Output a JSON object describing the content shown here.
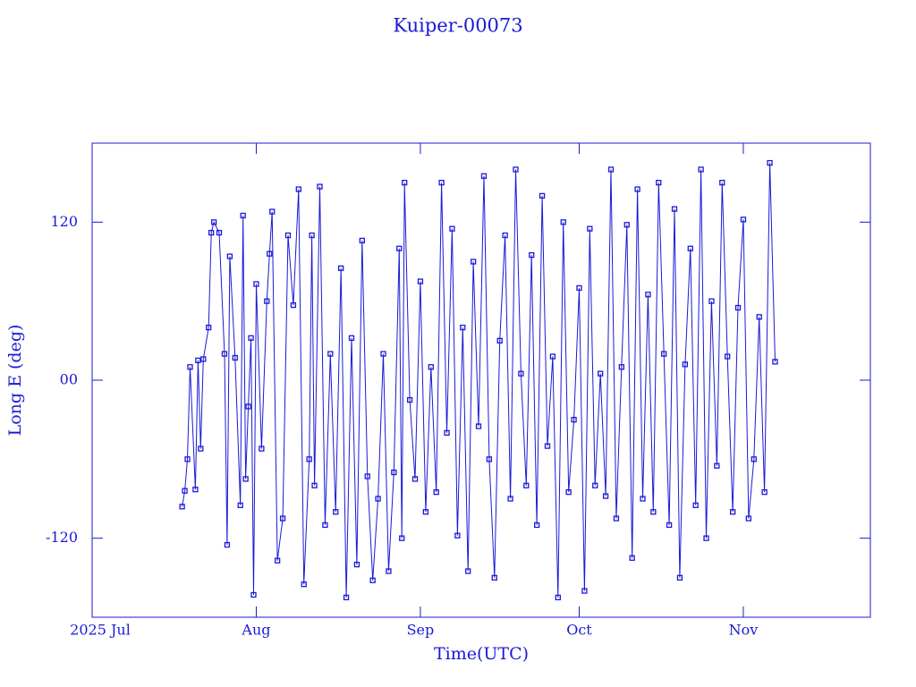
{
  "chart_data": {
    "type": "line",
    "title": "Kuiper-00073",
    "xlabel": "Time(UTC)",
    "ylabel": "Long E (deg)",
    "color": "#1a1ad6",
    "x": [
      17,
      17.5,
      18,
      18.5,
      19.5,
      20,
      20.5,
      21,
      22,
      22.5,
      23,
      24,
      25,
      25.5,
      26,
      27,
      28,
      28.5,
      29,
      29.5,
      30,
      30.5,
      31,
      32,
      33,
      33.5,
      34,
      35,
      36,
      37,
      38,
      39,
      40,
      41,
      41.5,
      42,
      43,
      44,
      45,
      46,
      47,
      48,
      49,
      50,
      51,
      52,
      53,
      54,
      55,
      56,
      57,
      58,
      58.5,
      59,
      60,
      61,
      62,
      63,
      64,
      65,
      66,
      67,
      68,
      69,
      70,
      71,
      72,
      73,
      74,
      75,
      76,
      77,
      78,
      79,
      80,
      81,
      82,
      83,
      84,
      85,
      86,
      87,
      88,
      89,
      90,
      91,
      92,
      93,
      94,
      95,
      96,
      97,
      98,
      99,
      100,
      101,
      102,
      103,
      104,
      105,
      106,
      107,
      108,
      109,
      110,
      111,
      112,
      113,
      114,
      115,
      116,
      117,
      118,
      119,
      120,
      121,
      122,
      123,
      124,
      125,
      126,
      127,
      128,
      129
    ],
    "values": [
      -96,
      -84,
      -60,
      10,
      -83,
      15,
      -52,
      16,
      40,
      112,
      120,
      112,
      20,
      -125,
      94,
      17,
      -95,
      125,
      -75,
      -20,
      32,
      -163,
      73,
      -52,
      60,
      96,
      128,
      -137,
      -105,
      110,
      57,
      145,
      -155,
      -60,
      110,
      -80,
      147,
      -110,
      20,
      -100,
      85,
      -165,
      32,
      -140,
      106,
      -73,
      -152,
      -90,
      20,
      -145,
      -70,
      100,
      -120,
      150,
      -15,
      -75,
      75,
      -100,
      10,
      -85,
      150,
      -40,
      115,
      -118,
      40,
      -145,
      90,
      -35,
      155,
      -60,
      -150,
      30,
      110,
      -90,
      160,
      5,
      -80,
      95,
      -110,
      140,
      -50,
      18,
      -165,
      120,
      -85,
      -30,
      70,
      -160,
      115,
      -80,
      5,
      -88,
      160,
      -105,
      10,
      118,
      -135,
      145,
      -90,
      65,
      -100,
      150,
      20,
      -110,
      130,
      -150,
      12,
      100,
      -95,
      160,
      -120,
      60,
      -65,
      150,
      18,
      -100,
      55,
      122,
      -105,
      -60,
      48,
      -85,
      165,
      14
    ],
    "xlim": [
      0,
      147
    ],
    "xticks": [
      {
        "value": 0,
        "label": "2025 Jul"
      },
      {
        "value": 31,
        "label": "Aug"
      },
      {
        "value": 62,
        "label": "Sep"
      },
      {
        "value": 92,
        "label": "Oct"
      },
      {
        "value": 123,
        "label": "Nov"
      }
    ],
    "ylim": [
      -180,
      180
    ],
    "yticks": [
      {
        "value": -120,
        "label": "-120"
      },
      {
        "value": 0,
        "label": "00"
      },
      120
    ]
  }
}
